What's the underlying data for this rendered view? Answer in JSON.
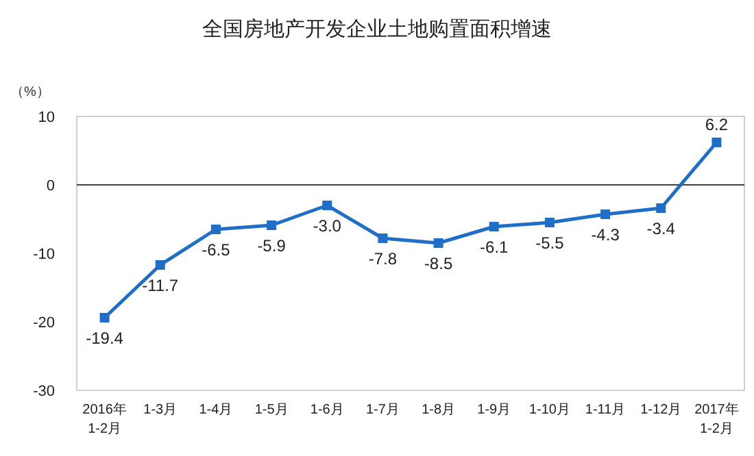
{
  "chart_data": {
    "type": "line",
    "title": "全国房地产开发企业土地购置面积增速",
    "ylabel": "（%）",
    "categories": [
      "2016年\n1-2月",
      "1-3月",
      "1-4月",
      "1-5月",
      "1-6月",
      "1-7月",
      "1-8月",
      "1-9月",
      "1-10月",
      "1-11月",
      "1-12月",
      "2017年\n1-2月"
    ],
    "series": [
      {
        "color": "#1f6fc8",
        "values": [
          -19.4,
          -11.7,
          -6.5,
          -5.9,
          -3.0,
          -7.8,
          -8.5,
          -6.1,
          -5.5,
          -4.3,
          -3.4,
          6.2
        ]
      }
    ],
    "ylim": [
      -30,
      10
    ],
    "yticks": [
      -30,
      -20,
      -10,
      0,
      10
    ],
    "marker": "square",
    "value_labels": [
      "-19.4",
      "-11.7",
      "-6.5",
      "-5.9",
      "-3.0",
      "-7.8",
      "-8.5",
      "-6.1",
      "-5.5",
      "-4.3",
      "-3.4",
      "6.2"
    ],
    "ref_lines": [
      {
        "axis": "y",
        "value": 0,
        "color": "#404040"
      }
    ]
  }
}
